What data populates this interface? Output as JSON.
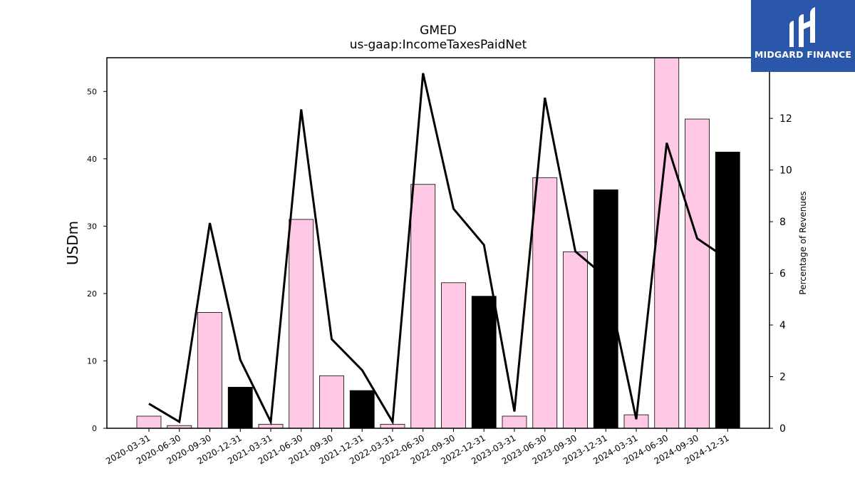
{
  "chart_data": {
    "type": "bar",
    "title": "GMED",
    "subtitle": "us-gaap:IncomeTaxesPaidNet",
    "ylabel": "USDm",
    "y2label": "Percentage of Revenues",
    "ylim": [
      0,
      55
    ],
    "y2lim": [
      0,
      14.35
    ],
    "yticks": [
      0,
      10,
      20,
      30,
      40,
      50
    ],
    "y2ticks": [
      0,
      2,
      4,
      6,
      8,
      10,
      12
    ],
    "categories": [
      "2020-03-31",
      "2020-06-30",
      "2020-09-30",
      "2020-12-31",
      "2021-03-31",
      "2021-06-30",
      "2021-09-30",
      "2021-12-31",
      "2022-03-31",
      "2022-06-30",
      "2022-09-30",
      "2022-12-31",
      "2023-03-31",
      "2023-06-30",
      "2023-09-30",
      "2023-12-31",
      "2024-03-31",
      "2024-06-30",
      "2024-09-30",
      "2024-12-31"
    ],
    "series": [
      {
        "type": "bar",
        "values": [
          1.8,
          0.4,
          17.2,
          6.1,
          0.6,
          31.0,
          7.8,
          5.6,
          0.6,
          36.2,
          21.6,
          19.6,
          1.8,
          37.2,
          26.2,
          35.4,
          2.0,
          55.0,
          45.9,
          41.0
        ]
      },
      {
        "type": "line",
        "axis": "right",
        "values": [
          0.95,
          0.25,
          7.95,
          2.65,
          0.25,
          12.35,
          3.45,
          2.25,
          0.25,
          13.75,
          8.5,
          7.1,
          0.65,
          12.8,
          6.85,
          5.85,
          0.35,
          11.05,
          7.35,
          6.55
        ]
      }
    ],
    "bar_colors": [
      "#ffc9e5",
      "#ffc9e5",
      "#ffc9e5",
      "#000000",
      "#ffc9e5",
      "#ffc9e5",
      "#ffc9e5",
      "#000000",
      "#ffc9e5",
      "#ffc9e5",
      "#ffc9e5",
      "#000000",
      "#ffc9e5",
      "#ffc9e5",
      "#ffc9e5",
      "#000000",
      "#ffc9e5",
      "#ffc9e5",
      "#ffc9e5",
      "#000000"
    ],
    "line_color": "#000000",
    "grid": false,
    "legend": "none"
  },
  "logo": {
    "text": "MIDGARD FINANCE",
    "background": "#2b57ab"
  }
}
